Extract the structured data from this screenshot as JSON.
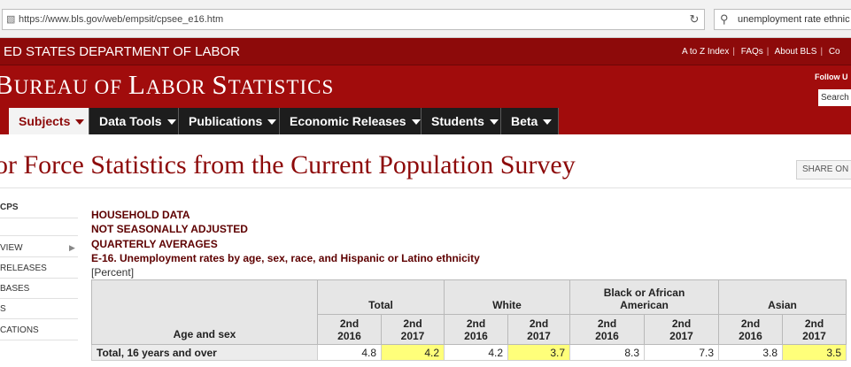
{
  "browser": {
    "url": "https://www.bls.gov/web/empsit/cpsee_e16.htm",
    "search_query": "unemployment rate ethnic"
  },
  "dol_bar": {
    "title": "ED STATES DEPARTMENT OF LABOR",
    "links": [
      "A to Z Index",
      "FAQs",
      "About BLS",
      "Co"
    ]
  },
  "banner": {
    "title_cap1": "B",
    "title_rest1": "UREAU OF ",
    "title_cap2": "L",
    "title_rest2": "ABOR ",
    "title_cap3": "S",
    "title_rest3": "TATISTICS",
    "follow": "Follow U",
    "search_placeholder": "Search"
  },
  "nav": {
    "items": [
      "Subjects",
      "Data Tools",
      "Publications",
      "Economic Releases",
      "Students",
      "Beta"
    ]
  },
  "page": {
    "title": "or Force Statistics from the Current Population Survey",
    "share": "SHARE ON"
  },
  "sidebar": {
    "items": [
      "CPS",
      "",
      "VIEW",
      "RELEASES",
      "BASES",
      "S",
      "CATIONS"
    ]
  },
  "header": {
    "line1": "HOUSEHOLD DATA",
    "line2": "NOT SEASONALLY ADJUSTED",
    "line3": "QUARTERLY AVERAGES",
    "line4": "E-16. Unemployment rates by age, sex, race, and Hispanic or Latino ethnicity",
    "line5": "[Percent]"
  },
  "table": {
    "row_header": "Age and sex",
    "groups": [
      "Total",
      "White",
      "Black or African American",
      "Asian"
    ],
    "subheaders": [
      "2nd 2016",
      "2nd 2017"
    ],
    "rows": [
      {
        "label": "Total, 16 years and over",
        "values": [
          "4.8",
          "4.2",
          "4.2",
          "3.7",
          "8.3",
          "7.3",
          "3.8",
          "3.5"
        ]
      }
    ],
    "highlight_color": "#ffff7a"
  },
  "colors": {
    "dol_bar": "#8d0a0a",
    "banner": "#a10c0c",
    "nav_dark": "#1d1d1d",
    "title_red": "#8d0a0a"
  }
}
